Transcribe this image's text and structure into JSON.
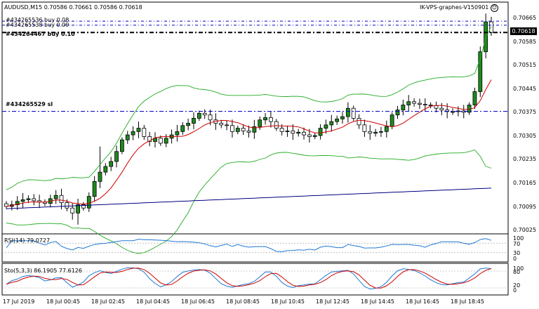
{
  "header": {
    "symbol_line": "AUDUSD,M15  0.70586 0.70661 0.70586 0.70618",
    "server_title": "IK-VPS-graphes-V150901"
  },
  "orders": [
    {
      "label": "#434265536 buy 0.08"
    },
    {
      "label": "#434265538 buy 0.09"
    },
    {
      "label": "#434264467 buy 0.10"
    },
    {
      "label": "#434265529 sl"
    }
  ],
  "price_axis": {
    "current_price": "0.70618",
    "ticks": [
      "0.70665",
      "0.70585",
      "0.70515",
      "0.70445",
      "0.70375",
      "0.70305",
      "0.70235",
      "0.70165",
      "0.70095",
      "0.70025"
    ]
  },
  "rsi": {
    "label": "RSI(14) 79.0727",
    "levels": [
      "100",
      "70",
      "30",
      "0"
    ]
  },
  "stoch": {
    "label": "Sto(5,3,3) 86.1905 77.6126",
    "levels": [
      "100",
      "80",
      "20",
      "0"
    ]
  },
  "time_axis": [
    "17 Jul 2019",
    "18 Jul 00:45",
    "18 Jul 02:45",
    "18 Jul 04:45",
    "18 Jul 06:45",
    "18 Jul 08:45",
    "18 Jul 10:45",
    "18 Jul 12:45",
    "18 Jul 14:45",
    "18 Jul 16:45",
    "18 Jul 18:45"
  ],
  "colors": {
    "bull": "#1e8a1e",
    "bear": "#000000",
    "ma_fast": "#cc0000",
    "ma_slow": "#000080",
    "bands": "#22aa22",
    "order_line": "#0000cc",
    "rsi": "#1f78d4",
    "stoch_main": "#1f78d4",
    "stoch_signal": "#cc0000"
  },
  "chart_data": {
    "type": "candlestick",
    "symbol": "AUDUSD",
    "timeframe": "M15",
    "ylim": [
      0.7,
      0.7068
    ],
    "close": [
      0.70095,
      0.701,
      0.7011,
      0.70115,
      0.70118,
      0.70112,
      0.70108,
      0.70104,
      0.70118,
      0.70128,
      0.70106,
      0.7009,
      0.70075,
      0.701,
      0.7009,
      0.70125,
      0.7017,
      0.70198,
      0.70215,
      0.7023,
      0.7026,
      0.70295,
      0.7031,
      0.7032,
      0.7033,
      0.70305,
      0.7029,
      0.703,
      0.70285,
      0.703,
      0.7031,
      0.7032,
      0.70338,
      0.70345,
      0.7036,
      0.70375,
      0.7037,
      0.70355,
      0.70345,
      0.7034,
      0.70338,
      0.7032,
      0.7033,
      0.70322,
      0.70318,
      0.70335,
      0.70355,
      0.70362,
      0.7035,
      0.7033,
      0.7032,
      0.70322,
      0.70315,
      0.70318,
      0.7031,
      0.70305,
      0.70308,
      0.7033,
      0.7034,
      0.7035,
      0.70358,
      0.70365,
      0.7039,
      0.7036,
      0.7034,
      0.7032,
      0.70315,
      0.70318,
      0.7032,
      0.70335,
      0.7037,
      0.70385,
      0.704,
      0.7041,
      0.70405,
      0.70402,
      0.704,
      0.70398,
      0.7039,
      0.70385,
      0.7038,
      0.7038,
      0.70382,
      0.70378,
      0.704,
      0.7044,
      0.7056,
      0.7065,
      0.70618
    ],
    "ma_fast": "short period moving average",
    "ma_slow": "long period moving average"
  }
}
